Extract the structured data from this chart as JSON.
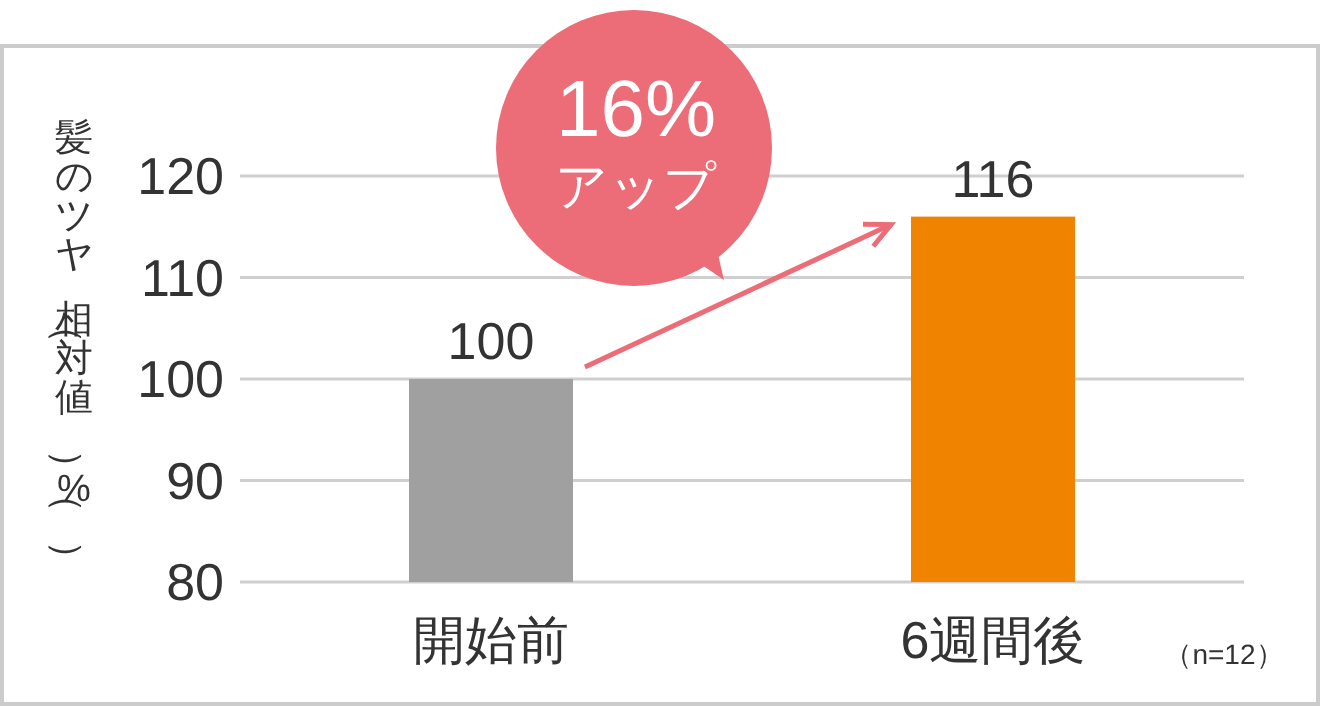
{
  "chart_data": {
    "type": "bar",
    "ylabel": "髪のツヤ（相対値）（%）",
    "categories": [
      "開始前",
      "6週間後"
    ],
    "values": [
      100,
      116
    ],
    "colors": [
      "#a0a0a0",
      "#f08300"
    ],
    "ylim": [
      80,
      120
    ],
    "yticks": [
      80,
      90,
      100,
      110,
      120
    ],
    "grid": "y",
    "data_labels": true,
    "annotations": [
      "16%\nアップ",
      "（n=12）"
    ]
  }
}
